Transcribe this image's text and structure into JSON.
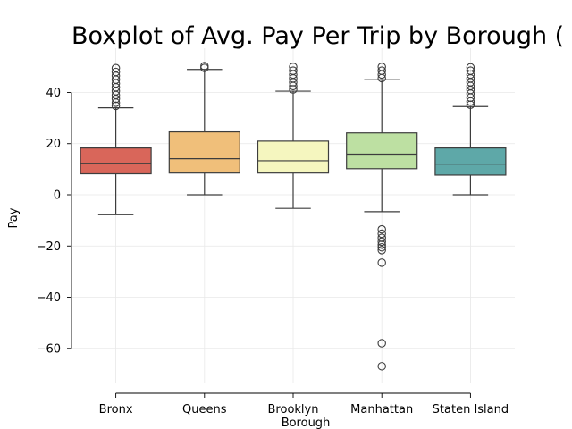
{
  "chart_data": {
    "type": "boxplot",
    "title": "Boxplot of Avg. Pay Per Trip by Borough (",
    "xlabel": "Borough",
    "ylabel": "Pay",
    "ylim": [
      -75,
      54
    ],
    "yticks": [
      40,
      20,
      0,
      -20,
      -40,
      -60
    ],
    "grid": true,
    "categories": [
      "Bronx",
      "Queens",
      "Brooklyn",
      "Manhattan",
      "Staten Island"
    ],
    "boxes": [
      {
        "category": "Bronx",
        "color": "#d9665a",
        "whisker_low": -7.8,
        "q1": 8.2,
        "median": 12.3,
        "q3": 18.3,
        "whisker_high": 34.0,
        "fliers": [
          34.8,
          36.0,
          37.5,
          39.0,
          40.5,
          42.0,
          43.5,
          45.0,
          46.5,
          48.0,
          49.5
        ]
      },
      {
        "category": "Queens",
        "color": "#f0bf7a",
        "whisker_low": 0.0,
        "q1": 8.5,
        "median": 14.1,
        "q3": 24.6,
        "whisker_high": 49.0,
        "fliers": [
          49.6,
          50.3
        ]
      },
      {
        "category": "Brooklyn",
        "color": "#f5f6bf",
        "whisker_low": -5.3,
        "q1": 8.5,
        "median": 13.3,
        "q3": 21.0,
        "whisker_high": 40.5,
        "fliers": [
          41.2,
          42.5,
          44.0,
          45.5,
          47.0,
          48.5,
          50.0
        ]
      },
      {
        "category": "Manhattan",
        "color": "#bde0a2",
        "whisker_low": -6.6,
        "q1": 10.2,
        "median": 15.9,
        "q3": 24.2,
        "whisker_high": 45.0,
        "fliers": [
          45.6,
          47.0,
          48.5,
          50.0,
          -13.5,
          -15.2,
          -16.8,
          -18.3,
          -19.5,
          -20.5,
          -21.6,
          -26.5,
          -58.0,
          -67.0
        ]
      },
      {
        "category": "Staten Island",
        "color": "#5ea8a8",
        "whisker_low": 0.0,
        "q1": 7.7,
        "median": 12.0,
        "q3": 18.3,
        "whisker_high": 34.5,
        "fliers": [
          35.2,
          36.5,
          38.0,
          39.5,
          41.0,
          42.5,
          44.0,
          45.5,
          47.0,
          48.5,
          49.8
        ]
      }
    ]
  }
}
